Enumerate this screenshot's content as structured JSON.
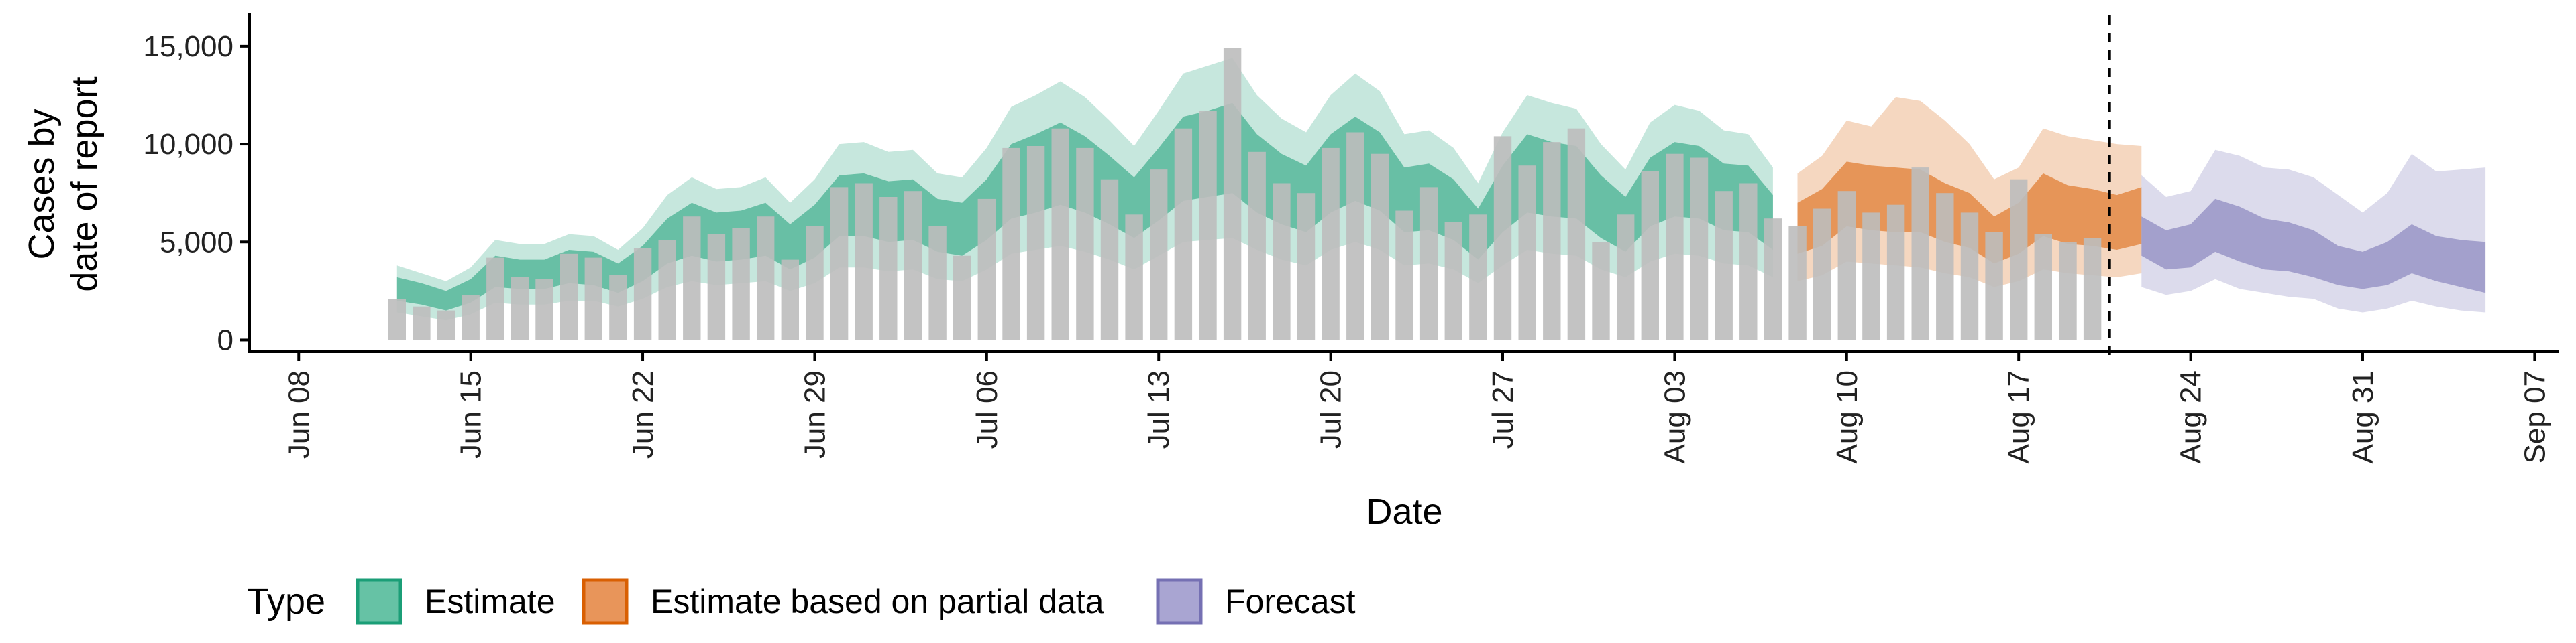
{
  "chart_data": {
    "type": "area",
    "xlabel": "Date",
    "ylabel": [
      "Cases by",
      "date of report"
    ],
    "x_range": [
      "2020-06-06",
      "2020-09-08"
    ],
    "ylim": [
      -600,
      16500
    ],
    "y_ticks": [
      0,
      5000,
      10000,
      15000
    ],
    "y_tick_labels": [
      "0",
      "5,000",
      "10,000",
      "15,000"
    ],
    "x_ticks": [
      "2020-06-08",
      "2020-06-15",
      "2020-06-22",
      "2020-06-29",
      "2020-07-06",
      "2020-07-13",
      "2020-07-20",
      "2020-07-27",
      "2020-08-03",
      "2020-08-10",
      "2020-08-17",
      "2020-08-24",
      "2020-08-31",
      "2020-09-07"
    ],
    "x_tick_labels": [
      "Jun 08",
      "Jun 15",
      "Jun 22",
      "Jun 29",
      "Jul 06",
      "Jul 13",
      "Jul 20",
      "Jul 27",
      "Aug 03",
      "Aug 10",
      "Aug 17",
      "Aug 24",
      "Aug 31",
      "Sep 07"
    ],
    "forecast_line_date": "2020-08-21",
    "grid": false,
    "legend_position": "bottom",
    "legend": {
      "title": "Type",
      "entries": [
        {
          "label": "Estimate",
          "fill": "#66c2a5",
          "stroke": "#1b9e77"
        },
        {
          "label": "Estimate based on partial data",
          "fill": "#e8955a",
          "stroke": "#d95f02"
        },
        {
          "label": "Forecast",
          "fill": "#a9a5d2",
          "stroke": "#7570b3"
        }
      ]
    },
    "colors": {
      "bar": "#bdbdbd",
      "estimate": "#1b9e77",
      "partial": "#d95f02",
      "forecast": "#7570b3"
    },
    "reported_cases": {
      "start_date": "2020-06-12",
      "values": [
        2100,
        1700,
        1500,
        2300,
        4200,
        3200,
        3100,
        4400,
        4200,
        3300,
        4700,
        5100,
        6300,
        5400,
        5700,
        6300,
        4100,
        5800,
        7800,
        8000,
        7300,
        7600,
        5800,
        4300,
        7200,
        9800,
        9900,
        10800,
        9800,
        8200,
        6400,
        8700,
        10800,
        11700,
        14900,
        9600,
        8000,
        7500,
        9800,
        10600,
        9500,
        6600,
        7800,
        6000,
        6400,
        10400,
        8900,
        10100,
        10800,
        5000,
        6400,
        8600,
        9500,
        9300,
        7600,
        8000,
        6200,
        5800,
        6700,
        7600,
        6500,
        6900,
        8800,
        7500,
        6500,
        5500,
        8200,
        5400,
        5000,
        5200
      ]
    },
    "series": [
      {
        "name": "Estimate",
        "start_date": "2020-06-12",
        "median": [
          2600,
          2300,
          2000,
          2500,
          3500,
          3300,
          3300,
          3700,
          3600,
          3100,
          3900,
          5000,
          5600,
          5200,
          5300,
          5600,
          4700,
          5500,
          6800,
          6900,
          6500,
          6600,
          5800,
          5600,
          6600,
          8100,
          8500,
          9000,
          8400,
          7600,
          6700,
          7900,
          9200,
          9500,
          9800,
          8500,
          7700,
          7200,
          8500,
          9200,
          8600,
          7100,
          7300,
          6600,
          5400,
          7200,
          8500,
          8200,
          8000,
          6800,
          5900,
          7500,
          8200,
          8000,
          7300,
          7200,
          6000
        ],
        "inner": [
          [
            2000,
            3200
          ],
          [
            1800,
            2900
          ],
          [
            1500,
            2500
          ],
          [
            1900,
            3100
          ],
          [
            2700,
            4300
          ],
          [
            2600,
            4100
          ],
          [
            2600,
            4100
          ],
          [
            2900,
            4600
          ],
          [
            2800,
            4500
          ],
          [
            2400,
            3900
          ],
          [
            3000,
            4800
          ],
          [
            3900,
            6200
          ],
          [
            4300,
            7000
          ],
          [
            4000,
            6500
          ],
          [
            4100,
            6600
          ],
          [
            4300,
            7000
          ],
          [
            3600,
            5900
          ],
          [
            4200,
            6900
          ],
          [
            5300,
            8400
          ],
          [
            5300,
            8500
          ],
          [
            5000,
            8100
          ],
          [
            5100,
            8200
          ],
          [
            4500,
            7200
          ],
          [
            4300,
            7000
          ],
          [
            5100,
            8200
          ],
          [
            6200,
            10000
          ],
          [
            6500,
            10500
          ],
          [
            6900,
            11100
          ],
          [
            6500,
            10400
          ],
          [
            5900,
            9400
          ],
          [
            5200,
            8300
          ],
          [
            6100,
            9800
          ],
          [
            7100,
            11400
          ],
          [
            7300,
            11700
          ],
          [
            7500,
            12100
          ],
          [
            6500,
            10500
          ],
          [
            5900,
            9500
          ],
          [
            5500,
            8900
          ],
          [
            6500,
            10500
          ],
          [
            7100,
            11400
          ],
          [
            6600,
            10600
          ],
          [
            5500,
            8800
          ],
          [
            5600,
            9000
          ],
          [
            5100,
            8200
          ],
          [
            4100,
            6700
          ],
          [
            5500,
            8900
          ],
          [
            6500,
            10500
          ],
          [
            6300,
            10100
          ],
          [
            6200,
            9900
          ],
          [
            5200,
            8400
          ],
          [
            4500,
            7300
          ],
          [
            5800,
            9300
          ],
          [
            6300,
            10100
          ],
          [
            6200,
            9900
          ],
          [
            5600,
            9000
          ],
          [
            5500,
            8900
          ],
          [
            4600,
            7400
          ]
        ],
        "outer": [
          [
            1400,
            3800
          ],
          [
            1200,
            3400
          ],
          [
            1000,
            3000
          ],
          [
            1300,
            3700
          ],
          [
            1900,
            5100
          ],
          [
            1800,
            4900
          ],
          [
            1800,
            4900
          ],
          [
            2000,
            5400
          ],
          [
            2000,
            5300
          ],
          [
            1700,
            4600
          ],
          [
            2100,
            5700
          ],
          [
            2700,
            7400
          ],
          [
            3000,
            8300
          ],
          [
            2800,
            7700
          ],
          [
            2900,
            7800
          ],
          [
            3000,
            8300
          ],
          [
            2500,
            7000
          ],
          [
            2900,
            8200
          ],
          [
            3700,
            10000
          ],
          [
            3700,
            10100
          ],
          [
            3500,
            9600
          ],
          [
            3600,
            9700
          ],
          [
            3100,
            8500
          ],
          [
            3000,
            8300
          ],
          [
            3600,
            9800
          ],
          [
            4400,
            11900
          ],
          [
            4600,
            12500
          ],
          [
            4800,
            13200
          ],
          [
            4500,
            12400
          ],
          [
            4100,
            11200
          ],
          [
            3600,
            9900
          ],
          [
            4300,
            11700
          ],
          [
            5000,
            13600
          ],
          [
            5100,
            14000
          ],
          [
            5200,
            14400
          ],
          [
            4600,
            12500
          ],
          [
            4100,
            11300
          ],
          [
            3800,
            10600
          ],
          [
            4600,
            12500
          ],
          [
            5000,
            13600
          ],
          [
            4600,
            12700
          ],
          [
            3800,
            10500
          ],
          [
            3900,
            10700
          ],
          [
            3600,
            9800
          ],
          [
            2900,
            8000
          ],
          [
            3800,
            10600
          ],
          [
            4600,
            12500
          ],
          [
            4400,
            12100
          ],
          [
            4300,
            11800
          ],
          [
            3600,
            10000
          ],
          [
            3200,
            8700
          ],
          [
            4000,
            11100
          ],
          [
            4400,
            12000
          ],
          [
            4300,
            11700
          ],
          [
            3900,
            10700
          ],
          [
            3800,
            10500
          ],
          [
            3200,
            8800
          ]
        ]
      },
      {
        "name": "Estimate based on partial data",
        "start_date": "2020-08-08",
        "median": [
          5800,
          6300,
          7600,
          7400,
          7300,
          7200,
          6600,
          6200,
          5200,
          5800,
          7000,
          6500,
          6300,
          6100,
          6500
        ],
        "inner": [
          [
            4400,
            7000
          ],
          [
            4800,
            7700
          ],
          [
            5800,
            9100
          ],
          [
            5600,
            8900
          ],
          [
            5500,
            8800
          ],
          [
            5500,
            8700
          ],
          [
            5000,
            8000
          ],
          [
            4700,
            7500
          ],
          [
            3900,
            6300
          ],
          [
            4400,
            7000
          ],
          [
            5300,
            8500
          ],
          [
            4900,
            7900
          ],
          [
            4800,
            7700
          ],
          [
            4600,
            7400
          ],
          [
            4900,
            7800
          ]
        ],
        "outer": [
          [
            3000,
            8500
          ],
          [
            3300,
            9400
          ],
          [
            4000,
            11200
          ],
          [
            3900,
            10900
          ],
          [
            3800,
            12400
          ],
          [
            3700,
            12200
          ],
          [
            3400,
            11200
          ],
          [
            3200,
            10000
          ],
          [
            2700,
            8200
          ],
          [
            3000,
            8800
          ],
          [
            3600,
            10800
          ],
          [
            3400,
            10400
          ],
          [
            3300,
            10200
          ],
          [
            3200,
            10000
          ],
          [
            3400,
            9900
          ]
        ]
      },
      {
        "name": "Forecast",
        "start_date": "2020-08-22",
        "median": [
          5300,
          4700,
          5000,
          6300,
          5400,
          5000,
          4700,
          4500,
          4000,
          3600,
          3900,
          4600,
          4100,
          3800,
          3600
        ],
        "inner": [
          [
            4300,
            6300
          ],
          [
            3600,
            5600
          ],
          [
            3700,
            5900
          ],
          [
            4500,
            7200
          ],
          [
            4000,
            6800
          ],
          [
            3600,
            6200
          ],
          [
            3500,
            6000
          ],
          [
            3200,
            5600
          ],
          [
            2800,
            4800
          ],
          [
            2600,
            4500
          ],
          [
            2800,
            5000
          ],
          [
            3400,
            5900
          ],
          [
            3000,
            5300
          ],
          [
            2700,
            5100
          ],
          [
            2400,
            5000
          ]
        ],
        "outer": [
          [
            2700,
            8400
          ],
          [
            2300,
            7300
          ],
          [
            2500,
            7600
          ],
          [
            3100,
            9700
          ],
          [
            2600,
            9400
          ],
          [
            2400,
            8800
          ],
          [
            2200,
            8700
          ],
          [
            2100,
            8300
          ],
          [
            1600,
            7400
          ],
          [
            1400,
            6500
          ],
          [
            1600,
            7500
          ],
          [
            2000,
            9500
          ],
          [
            1700,
            8600
          ],
          [
            1500,
            8700
          ],
          [
            1400,
            8800
          ]
        ]
      }
    ]
  }
}
